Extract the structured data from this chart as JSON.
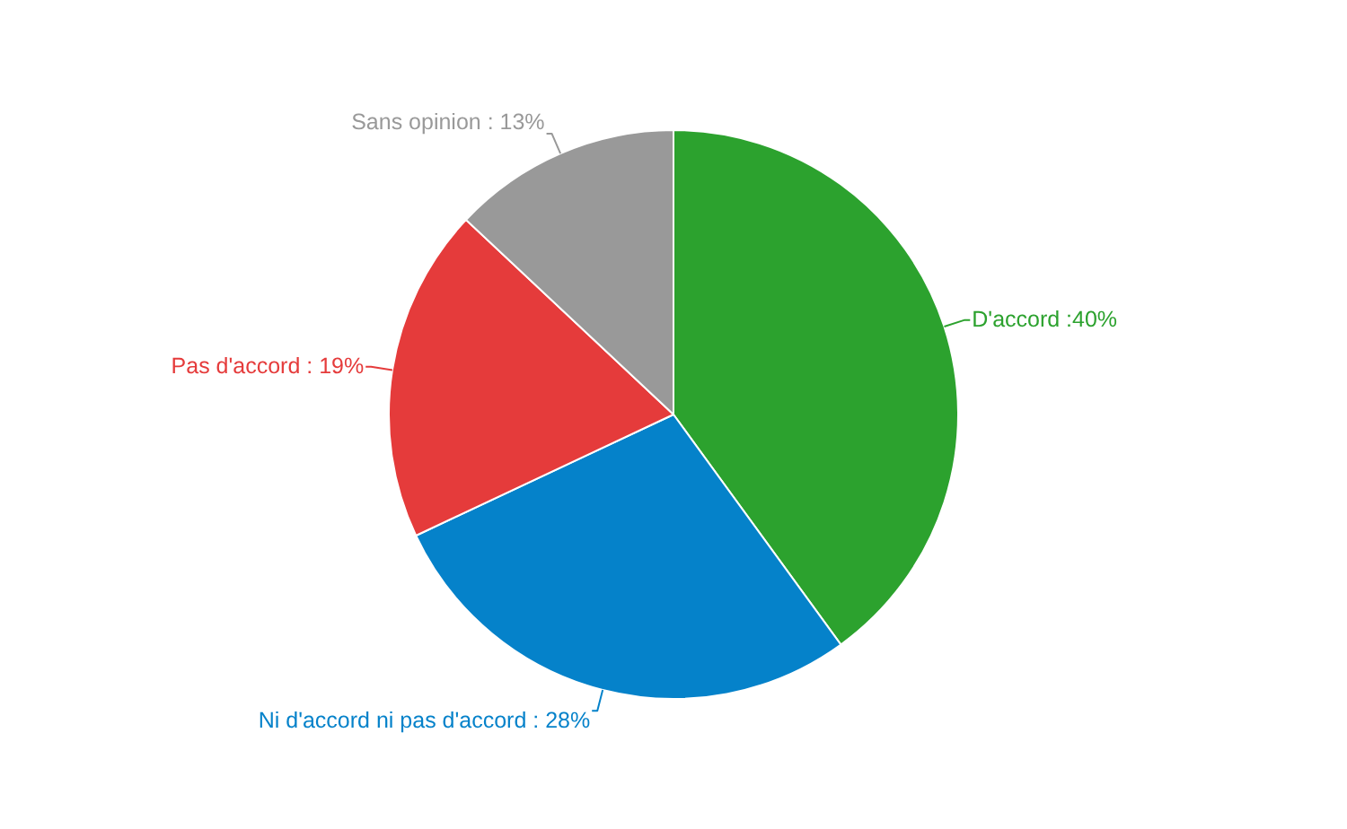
{
  "chart_data": {
    "type": "pie",
    "categories": [
      "D'accord",
      "Ni d'accord ni pas d'accord",
      "Pas d'accord",
      "Sans opinion"
    ],
    "values": [
      40,
      28,
      19,
      13
    ],
    "colors": [
      "#2ca22e",
      "#0582ca",
      "#e53b3b",
      "#999999"
    ],
    "value_labels": [
      ":40%",
      ": 28%",
      ": 19%",
      ": 13%"
    ]
  }
}
